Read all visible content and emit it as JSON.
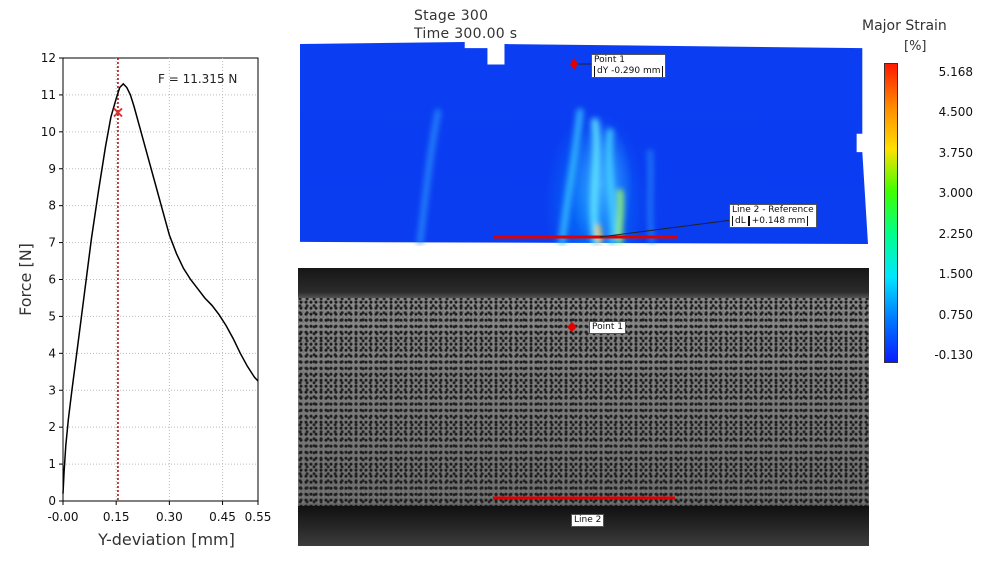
{
  "chart_data": {
    "type": "line",
    "xlabel": "Y-deviation [mm]",
    "ylabel": "Force [N]",
    "xlim": [
      0,
      0.55
    ],
    "ylim": [
      0,
      12
    ],
    "x_ticks": [
      "-0.00",
      "0.15",
      "0.30",
      "0.45",
      "0.55"
    ],
    "x_tick_values": [
      0,
      0.15,
      0.3,
      0.45,
      0.55
    ],
    "y_ticks": [
      "0",
      "1",
      "2",
      "3",
      "4",
      "5",
      "6",
      "7",
      "8",
      "9",
      "10",
      "11",
      "12"
    ],
    "grid": true,
    "annotation": "F = 11.315 N",
    "marker": {
      "x": 0.155,
      "y": 10.55,
      "symbol": "×",
      "color": "#e03030"
    },
    "cursor_x": 0.155,
    "series": [
      {
        "color": "#000000",
        "x": [
          0.0,
          0.003,
          0.008,
          0.015,
          0.025,
          0.04,
          0.06,
          0.08,
          0.1,
          0.12,
          0.135,
          0.15,
          0.16,
          0.17,
          0.18,
          0.19,
          0.2,
          0.22,
          0.24,
          0.26,
          0.28,
          0.3,
          0.32,
          0.34,
          0.36,
          0.38,
          0.4,
          0.42,
          0.44,
          0.46,
          0.48,
          0.5,
          0.52,
          0.54,
          0.55
        ],
        "y": [
          0.2,
          0.8,
          1.5,
          2.2,
          3.0,
          4.1,
          5.6,
          7.1,
          8.4,
          9.6,
          10.4,
          10.9,
          11.2,
          11.3,
          11.2,
          11.0,
          10.7,
          10.0,
          9.3,
          8.6,
          7.9,
          7.2,
          6.7,
          6.3,
          6.0,
          5.75,
          5.5,
          5.3,
          5.05,
          4.75,
          4.4,
          4.0,
          3.65,
          3.35,
          3.25
        ]
      }
    ]
  },
  "header": {
    "stage": "Stage 300",
    "time": "Time  300.00 s"
  },
  "strain_scale": {
    "title": "Major Strain",
    "unit": "[%]",
    "ticks": [
      "5.168",
      "4.500",
      "3.750",
      "3.000",
      "2.250",
      "1.500",
      "0.750",
      "-0.130"
    ],
    "colors": [
      "#ff1a00",
      "#ff8a00",
      "#ffe000",
      "#3dff00",
      "#00ff8c",
      "#00e6ff",
      "#0078ff",
      "#0a1cff"
    ]
  },
  "strain_overlay": {
    "point_label": "Point 1",
    "point_value": "dY -0.290 mm",
    "line_label": "Line 2 - Reference",
    "line_value_prefix": "dL",
    "line_value": "+0.148 mm",
    "line_color": "#e00000"
  },
  "camera_overlay": {
    "point_label": "Point 1",
    "line_label": "Line 2"
  }
}
